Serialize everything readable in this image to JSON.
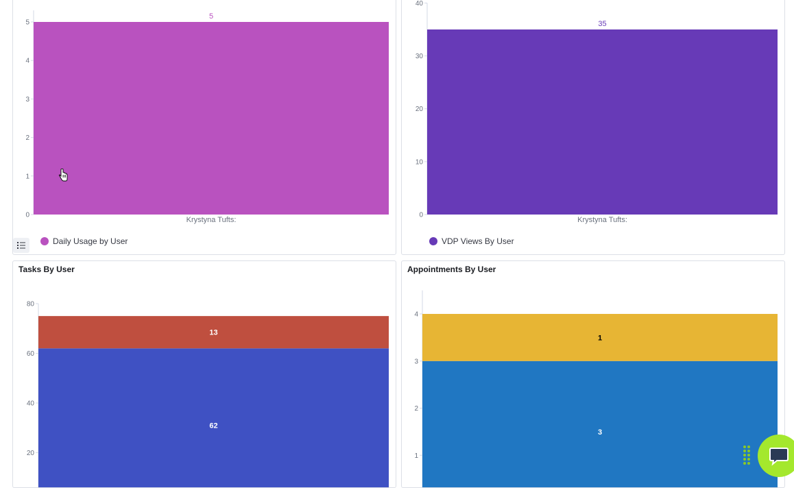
{
  "panels": [
    {
      "title": "",
      "legend": "Daily Usage by User",
      "color": "#b952bf"
    },
    {
      "title": "",
      "legend": "VDP Views By User",
      "color": "#673ab7"
    },
    {
      "title": "Tasks By User",
      "legend": "",
      "color": "#3f51c3"
    },
    {
      "title": "Appointments By User",
      "legend": "",
      "color": "#2077c2"
    }
  ],
  "chart_data": [
    {
      "type": "bar",
      "title": "",
      "categories": [
        "Krystyna Tufts:"
      ],
      "series": [
        {
          "name": "Daily Usage by User",
          "values": [
            5
          ],
          "color": "#b952bf"
        }
      ],
      "ylim": [
        0,
        5.3
      ],
      "yticks": [
        0,
        1,
        2,
        3,
        4,
        5
      ],
      "bar_labels": [
        "5"
      ],
      "grid": false,
      "legend_position": "bottom-left"
    },
    {
      "type": "bar",
      "title": "",
      "categories": [
        "Krystyna Tufts:"
      ],
      "series": [
        {
          "name": "VDP Views By User",
          "values": [
            35
          ],
          "color": "#673ab7"
        }
      ],
      "ylim": [
        0,
        40
      ],
      "yticks": [
        0,
        10,
        20,
        30,
        40
      ],
      "bar_labels": [
        "35"
      ],
      "grid": false,
      "legend_position": "bottom-left"
    },
    {
      "type": "bar",
      "stacked": true,
      "title": "Tasks By User",
      "categories": [
        ""
      ],
      "series": [
        {
          "values": [
            62
          ],
          "color": "#3f51c3"
        },
        {
          "values": [
            13
          ],
          "color": "#bf4f3f"
        }
      ],
      "ylim": [
        0,
        80
      ],
      "yticks": [
        20,
        40,
        60,
        80
      ],
      "segment_labels": [
        "62",
        "13"
      ],
      "grid": false
    },
    {
      "type": "bar",
      "stacked": true,
      "title": "Appointments By User",
      "categories": [
        ""
      ],
      "series": [
        {
          "values": [
            3
          ],
          "color": "#2077c2"
        },
        {
          "values": [
            1
          ],
          "color": "#e7b534"
        }
      ],
      "ylim": [
        0,
        4.5
      ],
      "yticks": [
        1,
        2,
        3,
        4
      ],
      "segment_labels": [
        "3",
        "1"
      ],
      "grid": false
    }
  ]
}
